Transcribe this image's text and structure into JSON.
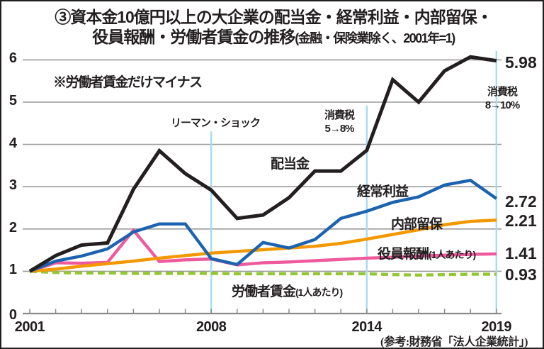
{
  "title": {
    "line1": "③資本金10億円以上の大企業の配当金・経常利益・内部留保・",
    "line2_main": "役員報酬・労働者賃金の推移",
    "line2_paren": "(金融・保険業除く、2001年=1)"
  },
  "note": "※労働者賃金だけマイナス",
  "source": "(参考:財務省「法人企業統計」)",
  "chart_data": {
    "type": "line",
    "x": [
      2001,
      2002,
      2003,
      2004,
      2005,
      2006,
      2007,
      2008,
      2009,
      2010,
      2011,
      2012,
      2013,
      2014,
      2015,
      2016,
      2017,
      2018,
      2019
    ],
    "xticks_labeled": [
      2001,
      2008,
      2014,
      2019
    ],
    "yticks": [
      0,
      1,
      2,
      3,
      4,
      5,
      6
    ],
    "ylim": [
      0,
      6.3
    ],
    "grid": true,
    "legend_position": "inline-labels",
    "base_year_note": "2001年=1",
    "series": [
      {
        "name": "配当金",
        "label_main": "配当金",
        "label_paren": "",
        "color": "#231f20",
        "dashed": false,
        "end_label": "5.98",
        "values": [
          1.0,
          1.37,
          1.62,
          1.67,
          2.94,
          3.85,
          3.31,
          2.92,
          2.25,
          2.33,
          2.74,
          3.37,
          3.37,
          3.86,
          5.53,
          5.0,
          5.74,
          6.07,
          5.98
        ]
      },
      {
        "name": "経常利益",
        "label_main": "経常利益",
        "label_paren": "",
        "color": "#1b63b0",
        "dashed": false,
        "end_label": "2.72",
        "values": [
          1.0,
          1.24,
          1.36,
          1.53,
          1.93,
          2.12,
          2.12,
          1.3,
          1.16,
          1.68,
          1.55,
          1.75,
          2.25,
          2.42,
          2.63,
          2.76,
          3.04,
          3.15,
          2.72
        ]
      },
      {
        "name": "内部留保",
        "label_main": "内部留保",
        "label_paren": "",
        "color": "#f39800",
        "dashed": false,
        "end_label": "2.21",
        "values": [
          1.0,
          1.05,
          1.12,
          1.18,
          1.24,
          1.31,
          1.37,
          1.43,
          1.47,
          1.51,
          1.55,
          1.59,
          1.66,
          1.76,
          1.87,
          1.98,
          2.1,
          2.18,
          2.21
        ]
      },
      {
        "name": "役員報酬(1人あたり)",
        "label_main": "役員報酬",
        "label_paren": "(1人あたり)",
        "color": "#ee5a9c",
        "dashed": false,
        "end_label": "1.41",
        "values": [
          1.0,
          1.2,
          1.19,
          1.21,
          1.97,
          1.23,
          1.27,
          1.29,
          1.15,
          1.2,
          1.22,
          1.25,
          1.28,
          1.31,
          1.33,
          1.36,
          1.38,
          1.4,
          1.41
        ]
      },
      {
        "name": "労働者賃金(1人あたり)",
        "label_main": "労働者賃金",
        "label_paren": "(1人あたり)",
        "color": "#94c832",
        "dashed": true,
        "end_label": "0.93",
        "values": [
          1.0,
          0.97,
          0.96,
          0.96,
          0.95,
          0.95,
          0.95,
          0.95,
          0.94,
          0.94,
          0.94,
          0.94,
          0.94,
          0.94,
          0.92,
          0.91,
          0.92,
          0.93,
          0.93
        ]
      }
    ],
    "events": [
      {
        "year": 2008,
        "lines": [
          "リーマン・ショック"
        ],
        "line_top": 4.31
      },
      {
        "year": 2014,
        "lines": [
          "消費税",
          "5→8%"
        ],
        "line_top": 4.92
      },
      {
        "year": 2019,
        "lines": [
          "消費税",
          "8→10%"
        ],
        "line_top": 6.21
      }
    ],
    "colors": {
      "grid": "#9b9b9b",
      "axis": "#8a8a8a",
      "event_line": "#a6dcf2",
      "text": "#231f20"
    }
  }
}
